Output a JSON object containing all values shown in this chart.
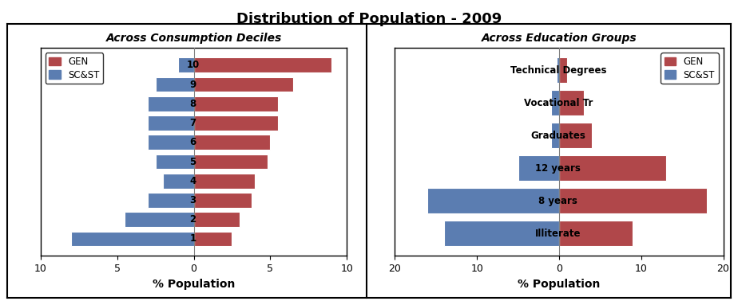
{
  "title": "Distribution of Population - 2009",
  "left_subtitle": "Across Consumption Deciles",
  "right_subtitle": "Across Education Groups",
  "decile_labels": [
    "1",
    "2",
    "3",
    "4",
    "5",
    "6",
    "7",
    "8",
    "9",
    "10"
  ],
  "decile_gen": [
    2.5,
    3.0,
    3.8,
    4.0,
    4.8,
    5.0,
    5.5,
    5.5,
    6.5,
    9.0
  ],
  "decile_scst": [
    -8.0,
    -4.5,
    -3.0,
    -2.0,
    -2.5,
    -3.0,
    -3.0,
    -3.0,
    -2.5,
    -1.0
  ],
  "edu_labels": [
    "Illiterate",
    "8 years",
    "12 years",
    "Graduates",
    "Vocational Tr",
    "Technical Degrees"
  ],
  "edu_gen": [
    9.0,
    18.0,
    13.0,
    4.0,
    3.0,
    1.0
  ],
  "edu_scst": [
    -14.0,
    -16.0,
    -5.0,
    -1.0,
    -1.0,
    -0.3
  ],
  "color_gen": "#b0474a",
  "color_scst": "#5b7db1",
  "left_xlim": [
    -10,
    10
  ],
  "left_xticks": [
    -10,
    -5,
    0,
    5,
    10
  ],
  "left_xticklabels": [
    "10",
    "5",
    "0",
    "5",
    "10"
  ],
  "right_xlim": [
    -20,
    20
  ],
  "right_xticks": [
    -20,
    -10,
    0,
    10,
    20
  ],
  "right_xticklabels": [
    "20",
    "10",
    "0",
    "10",
    "20"
  ],
  "xlabel": "% Population"
}
